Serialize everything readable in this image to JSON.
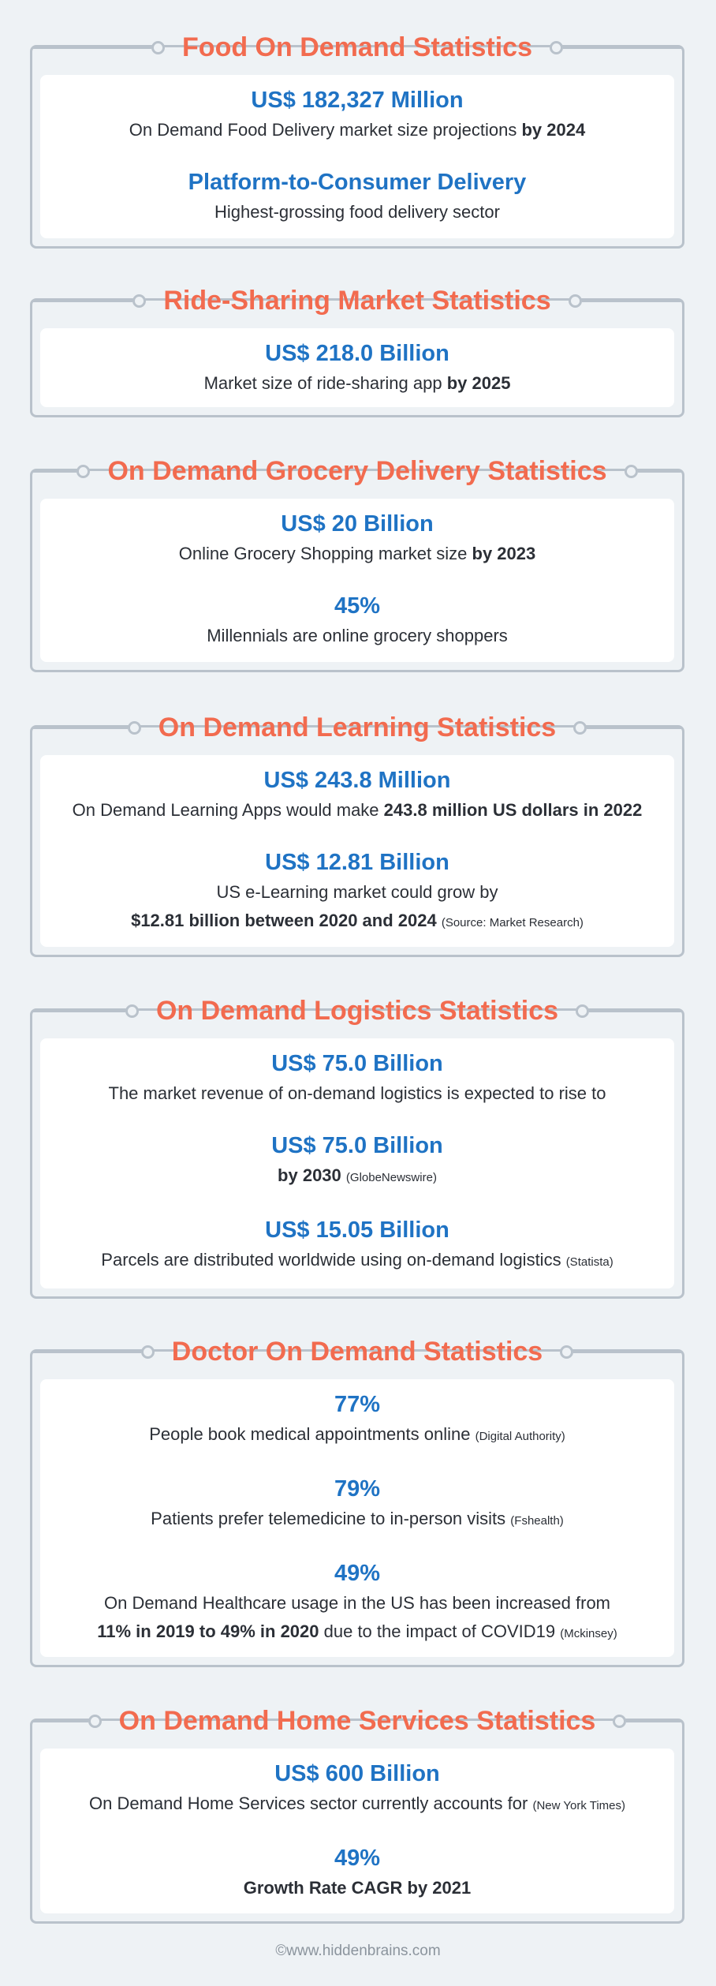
{
  "food": {
    "title": "Food On Demand Statistics",
    "s1_value": "US$ 182,327 Million",
    "s1_desc": "On Demand Food Delivery market size projections ",
    "s1_bold": "by 2024",
    "s2_value": "Platform-to-Consumer Delivery",
    "s2_desc": "Highest-grossing food delivery sector"
  },
  "ride": {
    "title": "Ride-Sharing Market Statistics",
    "s1_value": "US$ 218.0 Billion",
    "s1_desc": "Market size of ride-sharing app ",
    "s1_bold": "by 2025"
  },
  "grocery": {
    "title": "On Demand Grocery Delivery Statistics",
    "s1_value": "US$ 20 Billion",
    "s1_desc": "Online Grocery Shopping market size ",
    "s1_bold": "by 2023",
    "s2_value": "45%",
    "s2_desc": "Millennials are online grocery shoppers"
  },
  "learning": {
    "title": "On Demand Learning Statistics",
    "s1_value": "US$ 243.8 Million",
    "s1_desc": "On Demand Learning Apps would make ",
    "s1_bold": "243.8 million US dollars in 2022",
    "s2_value": "US$ 12.81 Billion",
    "s2_desc": "US e-Learning market could grow by",
    "s2_bold": "$12.81 billion between 2020 and 2024",
    "s2_src": "(Source: Market Research)"
  },
  "logistics": {
    "title": "On Demand Logistics Statistics",
    "s1_value": "US$ 75.0 Billion",
    "s1_desc": "The market revenue of on-demand logistics is expected to rise to",
    "s2_value": "US$ 75.0 Billion",
    "s2_bold": "by 2030",
    "s2_src": "(GlobeNewswire)",
    "s3_value": "US$ 15.05 Billion",
    "s3_desc": "Parcels are distributed worldwide using on-demand logistics ",
    "s3_src": "(Statista)"
  },
  "doctor": {
    "title": "Doctor On Demand Statistics",
    "s1_value": "77%",
    "s1_desc": "People book medical appointments online ",
    "s1_src": "(Digital Authority)",
    "s2_value": "79%",
    "s2_desc": "Patients prefer telemedicine to in-person visits ",
    "s2_src": "(Fshealth)",
    "s3_value": "49%",
    "s3_desc": "On Demand Healthcare usage in the US has been increased from",
    "s3_bold": "11% in 2019 to 49% in 2020",
    "s3_desc2": " due to the impact of COVID19 ",
    "s3_src": "(Mckinsey)"
  },
  "home": {
    "title": "On Demand Home Services Statistics",
    "s1_value": "US$ 600 Billion",
    "s1_desc": "On Demand Home Services sector currently accounts for ",
    "s1_src": "(New York Times)",
    "s2_value": "49%",
    "s2_bold": "Growth Rate CAGR by 2021"
  },
  "footer": "©www.hiddenbrains.com"
}
